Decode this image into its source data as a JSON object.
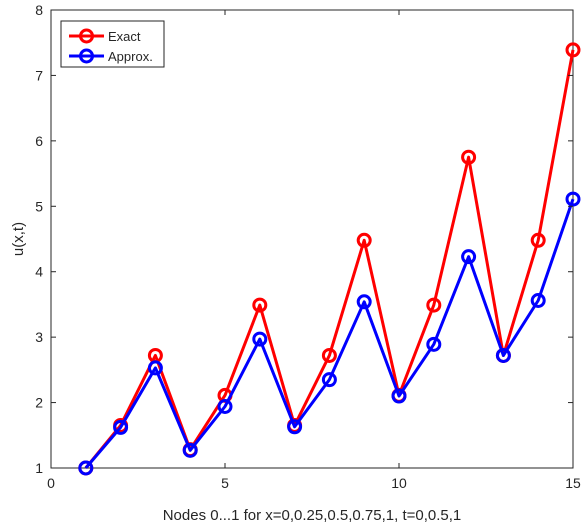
{
  "chart_data": {
    "type": "line",
    "title": "",
    "xlabel": "Nodes 0...1 for  x=0,0.25,0.5,0.75,1, t=0,0.5,1",
    "ylabel": "u(x,t)",
    "xlim": [
      0,
      15
    ],
    "ylim": [
      1,
      8
    ],
    "xticks": [
      0,
      5,
      10,
      15
    ],
    "yticks": [
      1,
      2,
      3,
      4,
      5,
      6,
      7,
      8
    ],
    "grid": false,
    "legend_position": "top-left",
    "x": [
      1,
      2,
      3,
      4,
      5,
      6,
      7,
      8,
      9,
      10,
      11,
      12,
      13,
      14,
      15
    ],
    "series": [
      {
        "name": "Exact",
        "color": "#ff0000",
        "marker": "circle",
        "values": [
          1.0,
          1.65,
          2.72,
          1.28,
          2.11,
          3.49,
          1.65,
          2.72,
          4.48,
          2.11,
          3.49,
          5.75,
          2.72,
          4.48,
          7.39
        ]
      },
      {
        "name": "Approx.",
        "color": "#0000ff",
        "marker": "circle",
        "values": [
          1.0,
          1.62,
          2.53,
          1.27,
          1.94,
          2.97,
          1.63,
          2.35,
          3.54,
          2.1,
          2.89,
          4.23,
          2.72,
          3.56,
          5.11
        ]
      }
    ]
  }
}
